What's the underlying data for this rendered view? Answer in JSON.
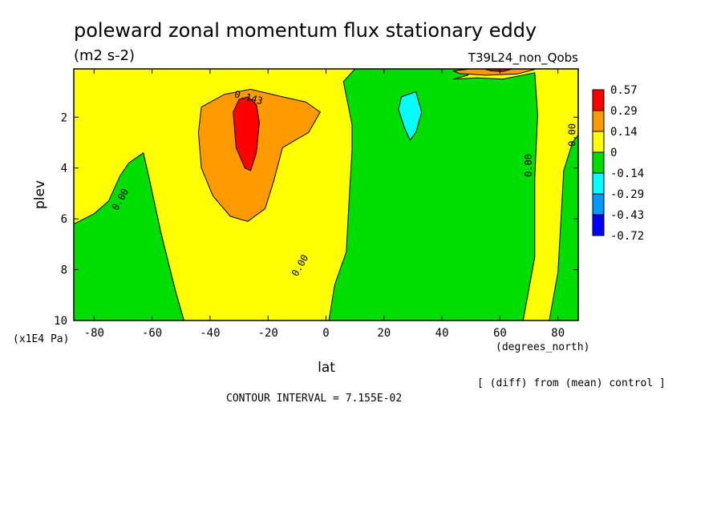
{
  "chart_data": {
    "type": "heatmap",
    "title": "poleward zonal momentum flux stationary eddy",
    "units": "(m2 s-2)",
    "experiment": "T39L24_non_Qobs",
    "xlabel": "lat",
    "x_units": "(degrees_north)",
    "ylabel": "plev",
    "y_units": "(x1E4 Pa)",
    "xlim": [
      -87,
      87
    ],
    "ylim": [
      10,
      0.1
    ],
    "x_ticks": [
      -80,
      -60,
      -40,
      -20,
      0,
      20,
      40,
      60,
      80
    ],
    "x_tick_labels": [
      "-80",
      "-60",
      "-40",
      "-20",
      "0",
      "20",
      "40",
      "60",
      "80"
    ],
    "y_ticks": [
      2,
      4,
      6,
      8,
      10
    ],
    "y_tick_labels": [
      "2",
      "4",
      "6",
      "8",
      "10"
    ],
    "colorbar": {
      "labels": [
        "0.57",
        "0.29",
        "0.14",
        "0",
        "-0.14",
        "-0.29",
        "-0.43",
        "-0.72"
      ],
      "colors": [
        "#ff0000",
        "#ff9900",
        "#ffff00",
        "#00dd00",
        "#00ffff",
        "#0099ff",
        "#0000ff"
      ]
    },
    "contour_labels": [
      {
        "text": "0.143",
        "lat": -27,
        "plev": 1.35
      },
      {
        "text": "0.00",
        "lat": -70,
        "plev": 5.3
      },
      {
        "text": "0.00",
        "lat": -8,
        "plev": 7.9
      },
      {
        "text": "0.00",
        "lat": 71,
        "plev": 3.9
      },
      {
        "text": "0.00",
        "lat": 86,
        "plev": 2.7
      }
    ],
    "regions": [
      {
        "level": "0 to 0.14",
        "color": "#ffff00",
        "points": [
          [
            -87,
            0.1
          ],
          [
            87,
            0.1
          ],
          [
            87,
            10
          ],
          [
            -87,
            10
          ]
        ]
      },
      {
        "level": "-0.14 to 0",
        "color": "#00dd00",
        "points": [
          [
            -87,
            6.2
          ],
          [
            -80,
            5.8
          ],
          [
            -75,
            5.3
          ],
          [
            -71,
            4.3
          ],
          [
            -68,
            3.8
          ],
          [
            -63,
            3.4
          ],
          [
            -61,
            4.4
          ],
          [
            -57,
            6.5
          ],
          [
            -52,
            8.8
          ],
          [
            -49,
            10
          ],
          [
            -87,
            10
          ]
        ]
      },
      {
        "level": "-0.14 to 0",
        "color": "#00dd00",
        "points": [
          [
            1,
            10
          ],
          [
            3,
            8.6
          ],
          [
            7,
            7.3
          ],
          [
            8,
            5.2
          ],
          [
            9,
            3.3
          ],
          [
            9,
            2.3
          ],
          [
            6,
            0.6
          ],
          [
            10,
            0.1
          ],
          [
            48,
            0.1
          ],
          [
            49,
            0.35
          ],
          [
            44,
            0.5
          ],
          [
            52,
            0.45
          ],
          [
            61,
            0.5
          ],
          [
            72,
            0.25
          ],
          [
            73,
            1.9
          ],
          [
            72,
            4.4
          ],
          [
            72,
            7.5
          ],
          [
            68,
            10
          ]
        ]
      },
      {
        "level": "-0.14 to 0",
        "color": "#00dd00",
        "points": [
          [
            77,
            10
          ],
          [
            80,
            8.1
          ],
          [
            82,
            4.1
          ],
          [
            85,
            3.0
          ],
          [
            87,
            2.7
          ],
          [
            87,
            10
          ]
        ]
      },
      {
        "level": "-0.29 to -0.14",
        "color": "#00ffff",
        "points": [
          [
            26,
            1.2
          ],
          [
            31,
            1.0
          ],
          [
            33,
            1.8
          ],
          [
            31,
            2.6
          ],
          [
            29,
            2.9
          ],
          [
            27,
            2.4
          ],
          [
            25,
            1.7
          ]
        ]
      },
      {
        "level": "0.14 to 0.29",
        "color": "#ff9900",
        "points": [
          [
            -43,
            1.6
          ],
          [
            -35,
            1.1
          ],
          [
            -26,
            0.9
          ],
          [
            -15,
            1.2
          ],
          [
            -7,
            1.4
          ],
          [
            -2,
            1.8
          ],
          [
            -6,
            2.6
          ],
          [
            -15,
            3.2
          ],
          [
            -18,
            4.5
          ],
          [
            -21,
            5.6
          ],
          [
            -27,
            6.1
          ],
          [
            -33,
            5.9
          ],
          [
            -39,
            5.1
          ],
          [
            -43,
            4.0
          ],
          [
            -44,
            2.6
          ]
        ]
      },
      {
        "level": "0.14 to 0.29",
        "color": "#ff9900",
        "points": [
          [
            44,
            0.18
          ],
          [
            52,
            0.07
          ],
          [
            64,
            0.02
          ],
          [
            72,
            0.12
          ],
          [
            66,
            0.3
          ],
          [
            55,
            0.35
          ],
          [
            46,
            0.28
          ]
        ]
      },
      {
        "level": "0.29 to 0.57",
        "color": "#ff0000",
        "points": [
          [
            -32,
            1.8
          ],
          [
            -30,
            1.3
          ],
          [
            -27,
            1.2
          ],
          [
            -24,
            1.5
          ],
          [
            -23,
            2.2
          ],
          [
            -24,
            3.4
          ],
          [
            -26,
            4.1
          ],
          [
            -28,
            4.0
          ],
          [
            -31,
            3.2
          ]
        ]
      },
      {
        "level": "0.29 to 0.57",
        "color": "#ff0000",
        "points": [
          [
            55,
            0.12
          ],
          [
            60,
            0.04
          ],
          [
            65,
            0.08
          ],
          [
            61,
            0.2
          ],
          [
            57,
            0.18
          ]
        ]
      }
    ]
  },
  "footer": {
    "note": "[ (diff) from (mean) control ]",
    "contour_interval": "CONTOUR INTERVAL = 7.155E-02"
  }
}
